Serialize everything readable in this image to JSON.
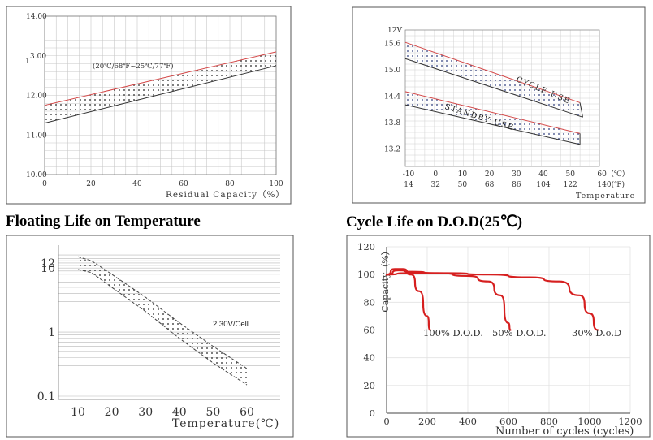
{
  "headings": {
    "floating_life": "Floating Life on Temperature",
    "cycle_life": "Cycle Life on D.O.D(25℃)"
  },
  "colors": {
    "band_edge": "#d44a4a",
    "curve_red": "#d61f1f",
    "grid": "#9a9a9a",
    "frame": "#555555",
    "text": "#333333"
  },
  "chart_data": [
    {
      "id": "capacity_vs_residual",
      "type": "area",
      "title": "",
      "xlabel": "Residual Capacity（%）",
      "ylabel": "",
      "xlim": [
        0,
        100
      ],
      "ylim": [
        10.0,
        14.0
      ],
      "x_ticks": [
        "0",
        "20",
        "40",
        "60",
        "80",
        "100"
      ],
      "x_tick_values": [
        0,
        20,
        40,
        60,
        80,
        100
      ],
      "y_ticks": [
        "14.00",
        "13.00",
        "12.00",
        "11.00",
        "10.00"
      ],
      "y_tick_values": [
        14.0,
        13.0,
        12.0,
        11.0,
        10.0
      ],
      "y_tick_prefix": {
        "13.00": "1"
      },
      "annotation": "(20℃/68℉~25℃/77℉)",
      "band": {
        "x": [
          0,
          100
        ],
        "upper": [
          11.75,
          13.1
        ],
        "lower": [
          11.3,
          12.75
        ]
      }
    },
    {
      "id": "voltage_vs_temperature",
      "type": "area",
      "title": "",
      "xlabel": "Temperature",
      "unit_label": "12V",
      "ylim": [
        12.8,
        15.9
      ],
      "xlim": [
        -10,
        60
      ],
      "y_ticks": [
        "15.6",
        "15.0",
        "14.4",
        "13.8",
        "13.2"
      ],
      "y_tick_values": [
        15.6,
        15.0,
        14.4,
        13.8,
        13.2
      ],
      "x_ticks_c": [
        "-10",
        "0",
        "10",
        "20",
        "30",
        "40",
        "50",
        "60（℃）"
      ],
      "x_tick_values": [
        -10,
        0,
        10,
        20,
        30,
        40,
        50,
        60
      ],
      "x_ticks_f": [
        "14",
        "32",
        "50",
        "68",
        "86",
        "104",
        "122",
        "140(℉)"
      ],
      "series": [
        {
          "name": "CYCLE USE",
          "x": [
            -10,
            53
          ],
          "upper": [
            15.62,
            14.25
          ],
          "lower": [
            15.25,
            13.92
          ],
          "end_x_lower": 54
        },
        {
          "name": "STANDBY USE",
          "x": [
            -10,
            53
          ],
          "upper": [
            14.5,
            13.55
          ],
          "lower": [
            14.2,
            13.3
          ]
        }
      ]
    },
    {
      "id": "floating_life_on_temperature",
      "type": "area",
      "title": "Floating Life on Temperature",
      "xlabel": "Temperature(℃)",
      "xlim": [
        5,
        70
      ],
      "y_scale": "log",
      "ylim": [
        0.1,
        17
      ],
      "x_ticks": [
        "10",
        "20",
        "30",
        "40",
        "50",
        "60"
      ],
      "x_tick_values": [
        10,
        20,
        30,
        40,
        50,
        60
      ],
      "y_ticks": [
        "12",
        "10",
        "1",
        "0.1"
      ],
      "y_tick_values": [
        12,
        10,
        1,
        0.1
      ],
      "annotation": "2.30V/Cell",
      "band": {
        "upper": [
          [
            10,
            15
          ],
          [
            14,
            13
          ],
          [
            20,
            8
          ],
          [
            30,
            3.5
          ],
          [
            40,
            1.4
          ],
          [
            50,
            0.6
          ],
          [
            60,
            0.27
          ]
        ],
        "lower": [
          [
            10,
            9.5
          ],
          [
            14,
            8.5
          ],
          [
            20,
            5
          ],
          [
            30,
            2.1
          ],
          [
            40,
            0.8
          ],
          [
            50,
            0.33
          ],
          [
            60,
            0.15
          ]
        ]
      }
    },
    {
      "id": "cycle_life_on_dod",
      "type": "line",
      "title": "Cycle Life on D.O.D(25℃)",
      "xlabel": "Number of cycles (cycles)",
      "ylabel": "Capacity（%）",
      "xlim": [
        0,
        1200
      ],
      "ylim": [
        0,
        120
      ],
      "x_ticks": [
        "0",
        "200",
        "400",
        "600",
        "800",
        "1000",
        "1200"
      ],
      "x_tick_values": [
        0,
        200,
        400,
        600,
        800,
        1000,
        1200
      ],
      "y_ticks": [
        "0",
        "20",
        "40",
        "60",
        "80",
        "100",
        "120"
      ],
      "y_tick_values": [
        0,
        20,
        40,
        60,
        80,
        100,
        120
      ],
      "series": [
        {
          "name": "100% D.O.D.",
          "x": [
            0,
            40,
            80,
            120,
            160,
            200,
            215
          ],
          "y": [
            100,
            104,
            104,
            100,
            88,
            70,
            60
          ]
        },
        {
          "name": "50% D.O.D.",
          "x": [
            0,
            60,
            120,
            250,
            400,
            500,
            560,
            600,
            610
          ],
          "y": [
            100,
            103,
            102,
            101,
            99,
            95,
            85,
            65,
            60
          ]
        },
        {
          "name": "30% D.o.D",
          "x": [
            0,
            100,
            300,
            500,
            700,
            850,
            950,
            1000,
            1040
          ],
          "y": [
            100,
            101,
            101,
            100,
            98,
            95,
            85,
            72,
            60
          ]
        }
      ]
    }
  ]
}
